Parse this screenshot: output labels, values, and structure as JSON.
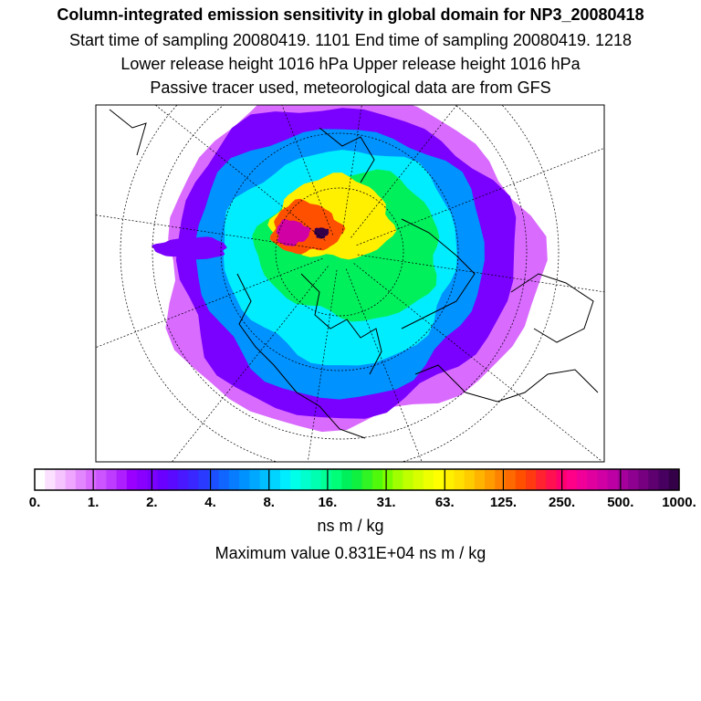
{
  "title": "Column-integrated emission sensitivity in global domain for NP3_20080418",
  "subtitle1": "Start time of sampling 20080419.  1101     End time of sampling 20080419.  1218",
  "subtitle2": "Lower release height 1016 hPa        Upper release height 1016 hPa",
  "subtitle3": "Passive tracer used, meteorological data are from GFS",
  "colorbar": {
    "unit": "ns m / kg",
    "labels": [
      "0.",
      "1.",
      "2.",
      "4.",
      "8.",
      "16.",
      "31.",
      "63.",
      "125.",
      "250.",
      "500.",
      "1000."
    ],
    "colors": [
      "#ffffff",
      "#fbe0ff",
      "#f5c4ff",
      "#eea6ff",
      "#e387ff",
      "#d96bff",
      "#cc55ff",
      "#bd3cff",
      "#ad1fff",
      "#9900ff",
      "#8a00ff",
      "#7a00ff",
      "#6a00ff",
      "#5a0aff",
      "#4a18ff",
      "#3a26ff",
      "#2a3aff",
      "#1c50ff",
      "#1066ff",
      "#087cff",
      "#0092ff",
      "#00a8ff",
      "#00beff",
      "#00d4ff",
      "#00ecff",
      "#00ffe8",
      "#00ffcc",
      "#00ffb0",
      "#00ff94",
      "#00ff78",
      "#00f05c",
      "#10f040",
      "#30f424",
      "#50f80c",
      "#78fc00",
      "#a0ff00",
      "#c0ff00",
      "#d8ff00",
      "#eeff00",
      "#ffff00",
      "#fff000",
      "#ffe000",
      "#ffcc00",
      "#ffb400",
      "#ff9c00",
      "#ff8200",
      "#ff6a00",
      "#ff5000",
      "#ff3a10",
      "#ff2230",
      "#ff1050",
      "#ff0070",
      "#ff0088",
      "#f00098",
      "#e000a0",
      "#d000a4",
      "#bc00a4",
      "#a6009c",
      "#8e0090",
      "#760080",
      "#5e0070",
      "#480060",
      "#340048"
    ]
  },
  "max_value_text": "Maximum value  0.831E+04 ns m / kg",
  "chart_data": {
    "type": "heatmap",
    "title": "Column-integrated emission sensitivity in global domain for NP3_20080418",
    "projection": "north polar stereographic",
    "sampling_start": "20080419.  1101",
    "sampling_end": "20080419.  1218",
    "lower_release_height_hPa": 1016,
    "upper_release_height_hPa": 1016,
    "tracer": "Passive tracer",
    "met_data": "GFS",
    "colorbar_ticks": [
      0,
      1,
      2,
      4,
      8,
      16,
      31,
      63,
      125,
      250,
      500,
      1000
    ],
    "unit": "ns m / kg",
    "maximum_value": 8310,
    "zones": [
      {
        "name": "outer-fringe",
        "level": 1
      },
      {
        "name": "outer-ring",
        "level": 2
      },
      {
        "name": "blue-ring",
        "level": 6
      },
      {
        "name": "cyan-ring",
        "level": 10
      },
      {
        "name": "green-core",
        "level": 20
      },
      {
        "name": "yellow-core",
        "level": 70
      },
      {
        "name": "orange-core",
        "level": 150
      },
      {
        "name": "red-core",
        "level": 400
      },
      {
        "name": "peak",
        "level": 8310
      }
    ]
  }
}
